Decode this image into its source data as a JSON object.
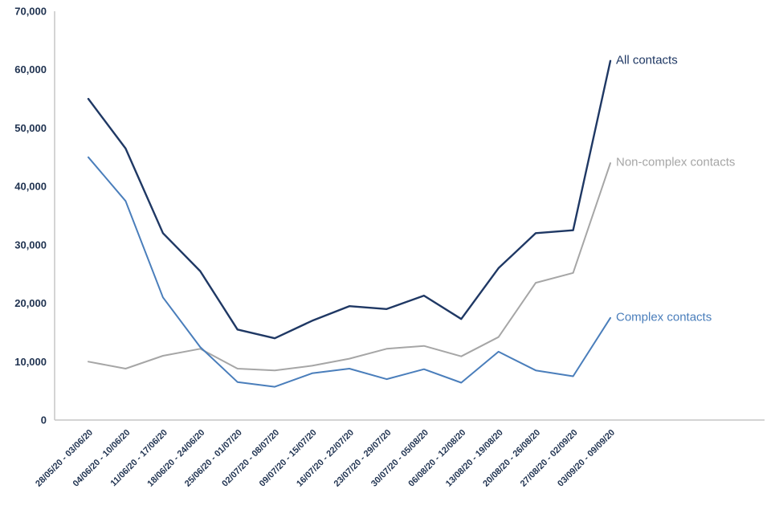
{
  "chart_data": {
    "type": "line",
    "title": "",
    "xlabel": "",
    "ylabel": "",
    "ylim": [
      0,
      70000
    ],
    "ytick_step": 10000,
    "ytick_labels": [
      "0",
      "10,000",
      "20,000",
      "30,000",
      "40,000",
      "50,000",
      "60,000",
      "70,000"
    ],
    "grid": false,
    "legend_position": "end-of-line",
    "axis_color": "#c6c6c6",
    "tick_label_color": "#1f3250",
    "categories": [
      "28/05/20 - 03/06/20",
      "04/06/20 - 10/06/20",
      "11/06/20 - 17/06/20",
      "18/06/20 - 24/06/20",
      "25/06/20 - 01/07/20",
      "02/07/20 - 08/07/20",
      "09/07/20 - 15/07/20",
      "16/07/20 - 22/07/20",
      "23/07/20 - 29/07/20",
      "30/07/20 - 05/08/20",
      "06/08/20 - 12/08/20",
      "13/08/20 - 19/08/20",
      "20/08/20 - 26/08/20",
      "27/08/20 - 02/09/20",
      "03/09/20 - 09/09/20"
    ],
    "series": [
      {
        "name": "All contacts",
        "color": "#1f3864",
        "values": [
          55000,
          46500,
          32000,
          25500,
          15500,
          14000,
          17000,
          19500,
          19000,
          21300,
          17300,
          26000,
          32000,
          32500,
          61500
        ]
      },
      {
        "name": "Non-complex contacts",
        "color": "#a6a6a6",
        "values": [
          10000,
          8800,
          11000,
          12200,
          8800,
          8500,
          9300,
          10500,
          12200,
          12700,
          10900,
          14200,
          23500,
          25200,
          44000
        ]
      },
      {
        "name": "Complex contacts",
        "color": "#4a7ebb",
        "values": [
          45000,
          37500,
          21000,
          12500,
          6500,
          5700,
          8000,
          8800,
          7000,
          8700,
          6400,
          11700,
          8500,
          7500,
          17500
        ]
      }
    ]
  }
}
